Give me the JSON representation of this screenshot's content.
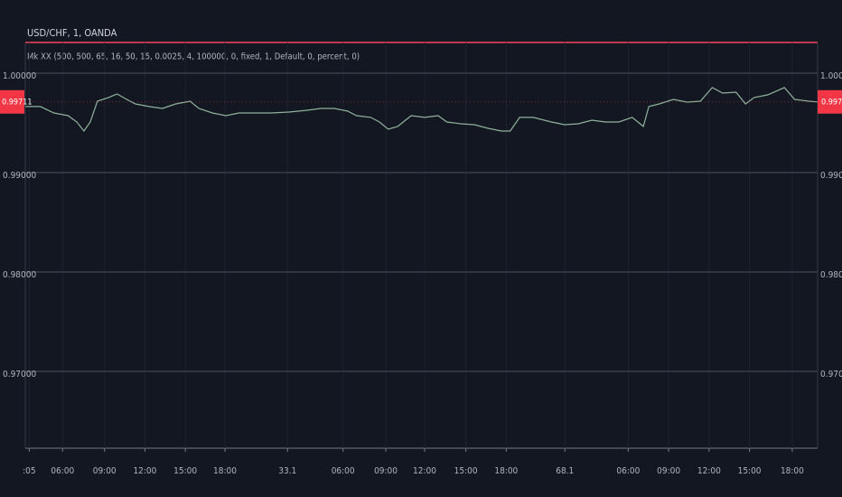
{
  "chart_data": {
    "type": "line",
    "title": "USD/CHF, 1, OANDA",
    "indicator": "Mk XX (500, 500, 65, 16, 50, 15, 0.0025, 4, 100000, 0, fixed, 1, Default, 0, percent, 0)",
    "x": [
      0,
      1.9,
      3.6,
      5.4,
      6.5,
      7.4,
      8.2,
      9.1,
      10.5,
      11.6,
      12.8,
      13.9,
      15.6,
      17.3,
      19.0,
      20.8,
      21.9,
      23.6,
      25.3,
      27.0,
      28.7,
      31.0,
      33.3,
      35.6,
      37.3,
      39.0,
      40.7,
      41.8,
      43.6,
      44.7,
      45.8,
      47.0,
      48.7,
      50.4,
      52.1,
      53.2,
      55.0,
      56.7,
      58.4,
      60.1,
      61.2,
      62.4,
      64.1,
      66.4,
      68.1,
      69.8,
      71.5,
      73.2,
      74.9,
      76.6,
      78.0,
      78.7,
      80.0,
      81.8,
      83.5,
      85.2,
      86.7,
      88.0,
      89.7,
      90.9,
      92.0,
      93.7,
      95.8,
      97.1,
      98.9,
      100
    ],
    "series": [
      {
        "name": "USD/CHF",
        "color": "#8fb39a",
        "values": [
          0.99664,
          0.99664,
          0.996,
          0.99573,
          0.99509,
          0.99418,
          0.99509,
          0.99718,
          0.99755,
          0.99791,
          0.99736,
          0.99691,
          0.99664,
          0.99645,
          0.99691,
          0.99718,
          0.99645,
          0.996,
          0.99573,
          0.996,
          0.996,
          0.996,
          0.99609,
          0.99627,
          0.99645,
          0.99645,
          0.99618,
          0.99573,
          0.99555,
          0.99509,
          0.99436,
          0.99464,
          0.99573,
          0.99555,
          0.99573,
          0.99509,
          0.99491,
          0.99482,
          0.99445,
          0.99418,
          0.99418,
          0.99555,
          0.99555,
          0.99509,
          0.99482,
          0.99491,
          0.99527,
          0.99509,
          0.99509,
          0.99555,
          0.99464,
          0.99664,
          0.99691,
          0.99736,
          0.99709,
          0.99718,
          0.99855,
          0.998,
          0.99809,
          0.99691,
          0.99755,
          0.99782,
          0.99855,
          0.99736,
          0.99718,
          0.99711
        ]
      }
    ],
    "last_price": {
      "value": 0.99711,
      "label": "0.99711"
    },
    "xlim": [
      0,
      100
    ],
    "xticks": [
      {
        "value": 0.5,
        "label": ":05"
      },
      {
        "value": 4.7,
        "label": "06:00"
      },
      {
        "value": 10.0,
        "label": "09:00"
      },
      {
        "value": 15.1,
        "label": "12:00"
      },
      {
        "value": 20.2,
        "label": "15:00"
      },
      {
        "value": 25.2,
        "label": "18:00"
      },
      33.1,
      {
        "value": 40.1,
        "label": "06:00"
      },
      {
        "value": 45.5,
        "label": "09:00"
      },
      {
        "value": 50.4,
        "label": "12:00"
      },
      {
        "value": 55.6,
        "label": "15:00"
      },
      {
        "value": 60.7,
        "label": "18:00"
      },
      68.1,
      {
        "value": 76.1,
        "label": "06:00"
      },
      {
        "value": 81.2,
        "label": "09:00"
      },
      {
        "value": 86.3,
        "label": "12:00"
      },
      {
        "value": 91.4,
        "label": "15:00"
      },
      {
        "value": 96.8,
        "label": "18:00"
      }
    ],
    "ylim": [
      0.96227,
      1.00309
    ],
    "yticks": [
      {
        "value": 0.97,
        "label": "0.97000"
      },
      {
        "value": 0.98,
        "label": "0.98000"
      },
      {
        "value": 0.99,
        "label": "0.99000"
      },
      {
        "value": 1,
        "label": "1.00000"
      }
    ],
    "grid": true
  }
}
